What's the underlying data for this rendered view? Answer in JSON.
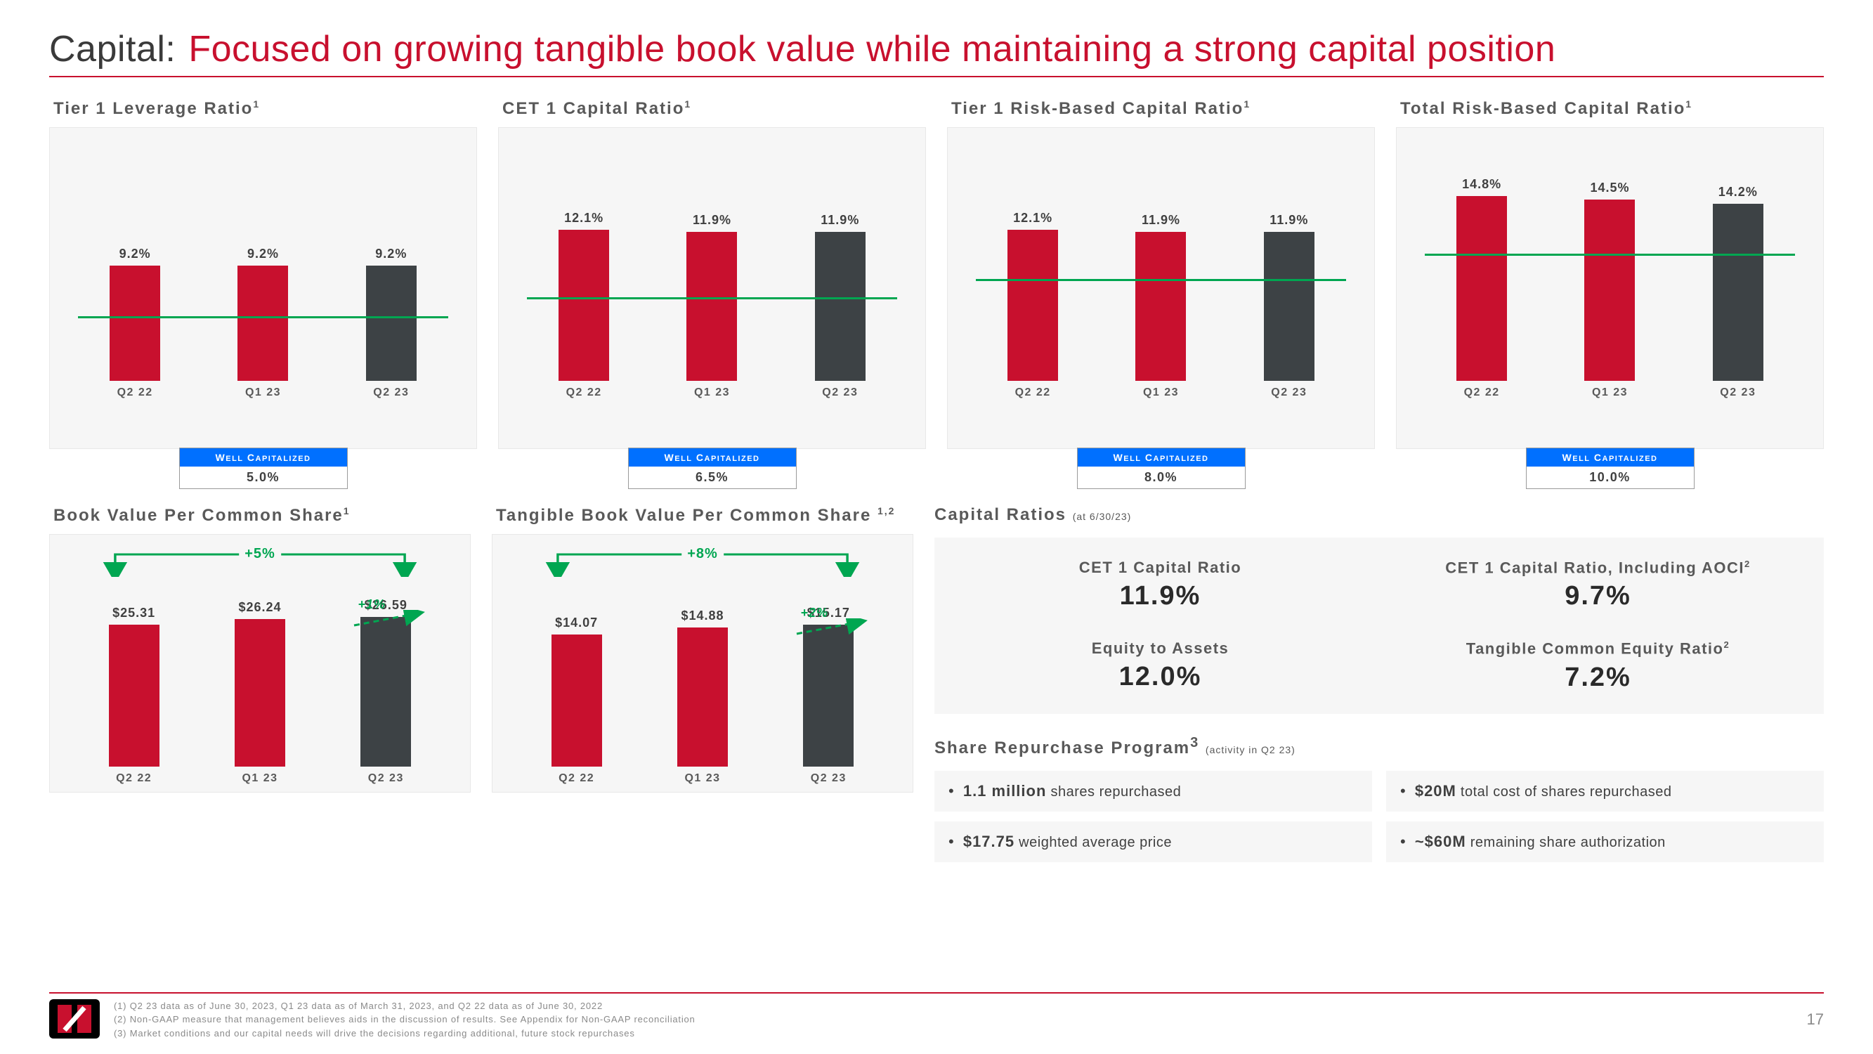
{
  "title_black": "Capital:",
  "title_red": "Focused on growing tangible book value while maintaining a strong capital position",
  "colors": {
    "red": "#c8102e",
    "dark": "#3d4245",
    "green": "#00a651",
    "blue": "#0070ff",
    "panel_bg": "#f6f6f6",
    "text_gray": "#595959"
  },
  "row1": [
    {
      "title": "Tier 1 Leverage Ratio",
      "sup": "1",
      "ymax": 18,
      "threshold_pct": 5.0,
      "bars": [
        {
          "x": "Q2 22",
          "v": 9.2,
          "label": "9.2%",
          "color": "#c8102e"
        },
        {
          "x": "Q1 23",
          "v": 9.2,
          "label": "9.2%",
          "color": "#c8102e"
        },
        {
          "x": "Q2 23",
          "v": 9.2,
          "label": "9.2%",
          "color": "#3d4245"
        }
      ],
      "wc_label": "WELL CAPITALIZED",
      "wc_value": "5.0%"
    },
    {
      "title": "CET 1 Capital Ratio",
      "sup": "1",
      "ymax": 18,
      "threshold_pct": 6.5,
      "bars": [
        {
          "x": "Q2 22",
          "v": 12.1,
          "label": "12.1%",
          "color": "#c8102e"
        },
        {
          "x": "Q1 23",
          "v": 11.9,
          "label": "11.9%",
          "color": "#c8102e"
        },
        {
          "x": "Q2 23",
          "v": 11.9,
          "label": "11.9%",
          "color": "#3d4245"
        }
      ],
      "wc_label": "WELL CAPITALIZED",
      "wc_value": "6.5%"
    },
    {
      "title": "Tier 1 Risk-Based Capital Ratio",
      "sup": "1",
      "ymax": 18,
      "threshold_pct": 8.0,
      "bars": [
        {
          "x": "Q2 22",
          "v": 12.1,
          "label": "12.1%",
          "color": "#c8102e"
        },
        {
          "x": "Q1 23",
          "v": 11.9,
          "label": "11.9%",
          "color": "#c8102e"
        },
        {
          "x": "Q2 23",
          "v": 11.9,
          "label": "11.9%",
          "color": "#3d4245"
        }
      ],
      "wc_label": "WELL CAPITALIZED",
      "wc_value": "8.0%"
    },
    {
      "title": "Total Risk-Based Capital Ratio",
      "sup": "1",
      "ymax": 18,
      "threshold_pct": 10.0,
      "bars": [
        {
          "x": "Q2 22",
          "v": 14.8,
          "label": "14.8%",
          "color": "#c8102e"
        },
        {
          "x": "Q1 23",
          "v": 14.5,
          "label": "14.5%",
          "color": "#c8102e"
        },
        {
          "x": "Q2 23",
          "v": 14.2,
          "label": "14.2%",
          "color": "#3d4245"
        }
      ],
      "wc_label": "WELL CAPITALIZED",
      "wc_value": "10.0%"
    }
  ],
  "row2_charts": [
    {
      "title": "Book Value Per Common Share",
      "sup": "1",
      "ymax": 30,
      "delta_overall": "+5%",
      "delta_step": "+1%",
      "bars": [
        {
          "x": "Q2 22",
          "v": 25.31,
          "label": "$25.31",
          "color": "#c8102e"
        },
        {
          "x": "Q1 23",
          "v": 26.24,
          "label": "$26.24",
          "color": "#c8102e"
        },
        {
          "x": "Q2 23",
          "v": 26.59,
          "label": "$26.59",
          "color": "#3d4245"
        }
      ]
    },
    {
      "title": "Tangible Book Value Per Common Share ",
      "sup": "1,2",
      "ymax": 18,
      "delta_overall": "+8%",
      "delta_step": "+2%",
      "bars": [
        {
          "x": "Q2 22",
          "v": 14.07,
          "label": "$14.07",
          "color": "#c8102e"
        },
        {
          "x": "Q1 23",
          "v": 14.88,
          "label": "$14.88",
          "color": "#c8102e"
        },
        {
          "x": "Q2 23",
          "v": 15.17,
          "label": "$15.17",
          "color": "#3d4245"
        }
      ]
    }
  ],
  "capital_ratios": {
    "title": "Capital Ratios",
    "subtitle": "(at 6/30/23)",
    "cells": [
      {
        "name": "CET 1 Capital Ratio",
        "sup": "",
        "value": "11.9%"
      },
      {
        "name": "CET 1 Capital Ratio, Including AOCI",
        "sup": "2",
        "value": "9.7%"
      },
      {
        "name": "Equity to Assets",
        "sup": "",
        "value": "12.0%"
      },
      {
        "name": "Tangible Common Equity Ratio",
        "sup": "2",
        "value": "7.2%"
      }
    ]
  },
  "srp": {
    "title": "Share Repurchase Program",
    "sup": "3",
    "subtitle": "(activity in Q2 23)",
    "items": [
      {
        "bold": "1.1 million",
        "rest": " shares repurchased"
      },
      {
        "bold": "$20M",
        "rest": " total cost of shares repurchased"
      },
      {
        "bold": "$17.75",
        "rest": " weighted average price"
      },
      {
        "bold": "~$60M",
        "rest": " remaining share authorization"
      }
    ]
  },
  "footnotes": [
    "(1)   Q2 23 data as of June 30, 2023, Q1 23 data as of March 31, 2023, and Q2 22 data as of June 30, 2022",
    "(2)   Non-GAAP measure that management believes aids in the discussion of results. See Appendix for Non-GAAP reconciliation",
    "(3)   Market conditions and our capital needs will drive the decisions regarding additional, future stock repurchases"
  ],
  "page_number": "17"
}
